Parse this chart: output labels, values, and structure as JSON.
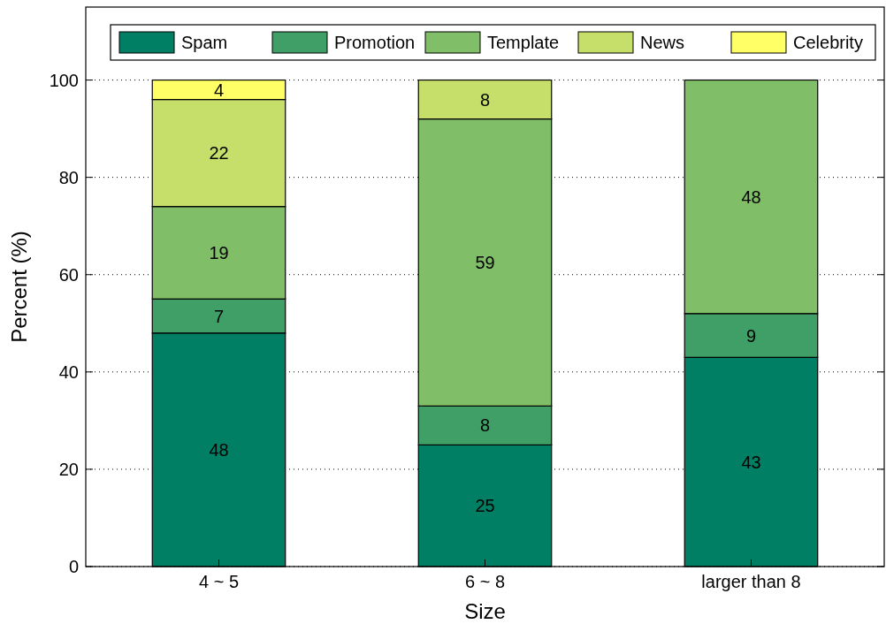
{
  "chart_data": {
    "type": "bar",
    "stacked": true,
    "xlabel": "Size",
    "ylabel": "Percent (%)",
    "categories": [
      "4 ~ 5",
      "6 ~ 8",
      "larger than 8"
    ],
    "series": [
      {
        "name": "Spam",
        "color": "#007f64",
        "values": [
          48,
          25,
          43
        ],
        "value_labels": [
          "48",
          "25",
          "43"
        ]
      },
      {
        "name": "Promotion",
        "color": "#3f9f66",
        "values": [
          7,
          8,
          9
        ],
        "value_labels": [
          "7",
          "8",
          "9"
        ]
      },
      {
        "name": "Template",
        "color": "#80bf68",
        "values": [
          19,
          59,
          48
        ],
        "value_labels": [
          "19",
          "59",
          "48"
        ]
      },
      {
        "name": "News",
        "color": "#c6df6a",
        "values": [
          22,
          8,
          null
        ],
        "value_labels": [
          "22",
          "8",
          null
        ]
      },
      {
        "name": "Celebrity",
        "color": "#ffff66",
        "values": [
          4,
          null,
          null
        ],
        "value_labels": [
          "4",
          null,
          null
        ]
      }
    ],
    "ylim": [
      0,
      115
    ],
    "yticks": [
      0,
      20,
      40,
      60,
      80,
      100
    ],
    "grid": "y",
    "legend": "top"
  }
}
